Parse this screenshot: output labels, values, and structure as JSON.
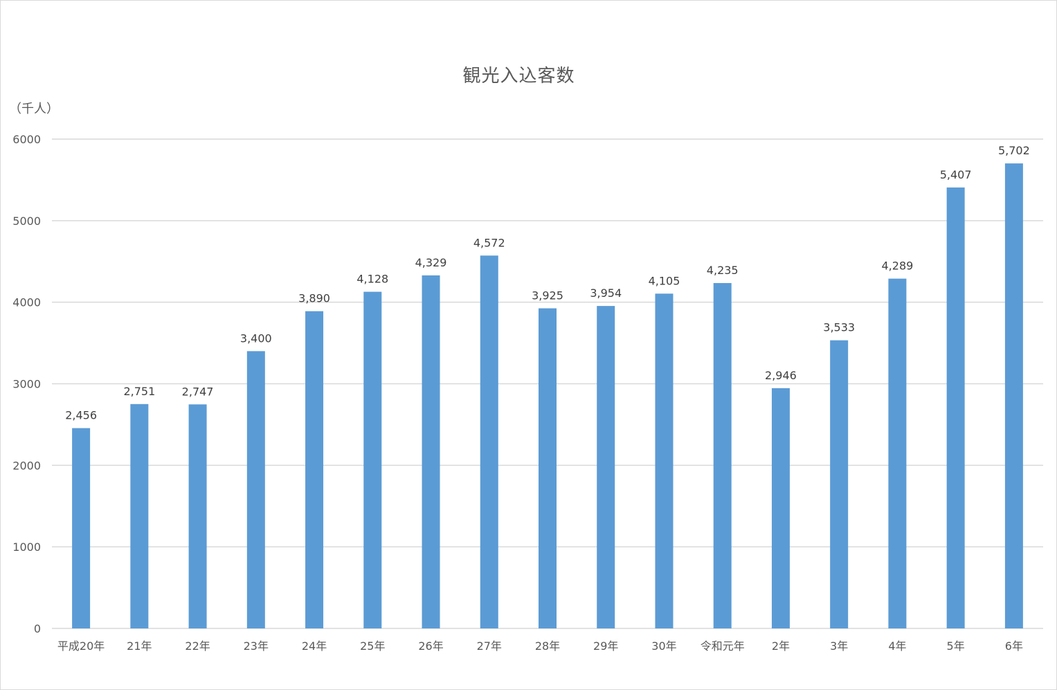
{
  "chart_data": {
    "type": "bar",
    "title": "観光入込客数",
    "ylabel": "（千人）",
    "xlabel": "",
    "categories": [
      "平成20年",
      "21年",
      "22年",
      "23年",
      "24年",
      "25年",
      "26年",
      "27年",
      "28年",
      "29年",
      "30年",
      "令和元年",
      "2年",
      "3年",
      "4年",
      "5年",
      "6年"
    ],
    "values": [
      2456,
      2751,
      2747,
      3400,
      3890,
      4128,
      4329,
      4572,
      3925,
      3954,
      4105,
      4235,
      2946,
      3533,
      4289,
      5407,
      5702
    ],
    "data_labels": [
      "2,456",
      "2,751",
      "2,747",
      "3,400",
      "3,890",
      "4,128",
      "4,329",
      "4,572",
      "3,925",
      "3,954",
      "4,105",
      "4,235",
      "2,946",
      "3,533",
      "4,289",
      "5,407",
      "5,702"
    ],
    "ylim": [
      0,
      6000
    ],
    "yticks": [
      0,
      1000,
      2000,
      3000,
      4000,
      5000,
      6000
    ],
    "grid": true,
    "bar_color": "#5b9bd5",
    "grid_color": "#d9d9d9",
    "text_color": "#595959"
  }
}
